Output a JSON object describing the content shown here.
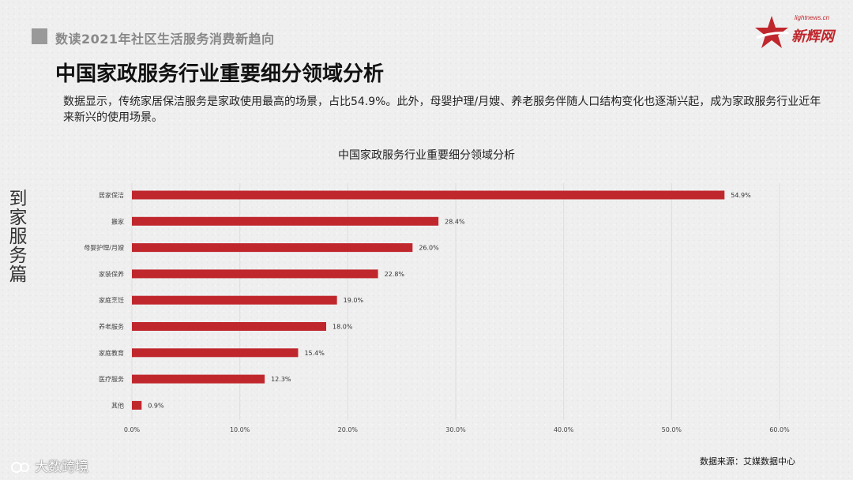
{
  "header": {
    "subtitle": "数读2021年社区生活服务消费新趋向"
  },
  "logo": {
    "url": "lightnews.cn",
    "name": "新辉网"
  },
  "page": {
    "title": "中国家政服务行业重要细分领域分析",
    "description": "数据显示，传统家居保洁服务是家政使用最高的场景，占比54.9%。此外，母婴护理/月嫂、养老服务伴随人口结构变化也逐渐兴起，成为家政服务行业近年来新兴的使用场景。",
    "side_label": "到家服务篇",
    "source": "数据来源：艾媒数据中心",
    "watermark": "大数跨境"
  },
  "colors": {
    "bar": "#c0272d",
    "grid": "#dddddd"
  },
  "chart_data": {
    "type": "bar",
    "orientation": "horizontal",
    "title": "中国家政服务行业重要细分领域分析",
    "categories": [
      "居家保洁",
      "搬家",
      "母婴护理/月嫂",
      "家装保养",
      "家庭烹饪",
      "养老服务",
      "家庭教育",
      "医疗服务",
      "其他"
    ],
    "values": [
      54.9,
      28.4,
      26.0,
      22.8,
      19.0,
      18.0,
      15.4,
      12.3,
      0.9
    ],
    "value_labels": [
      "54.9%",
      "28.4%",
      "26.0%",
      "22.8%",
      "19.0%",
      "18.0%",
      "15.4%",
      "12.3%",
      "0.9%"
    ],
    "xlim": [
      0,
      60
    ],
    "ticks": [
      0,
      10,
      20,
      30,
      40,
      50,
      60
    ],
    "tick_labels": [
      "0.0%",
      "10.0%",
      "20.0%",
      "30.0%",
      "40.0%",
      "50.0%",
      "60.0%"
    ],
    "grid": true,
    "legend": false
  }
}
